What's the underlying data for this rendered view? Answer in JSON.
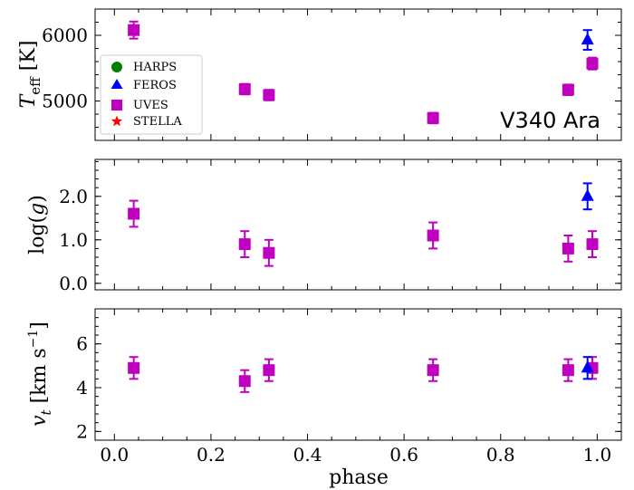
{
  "figure": {
    "annotation": "V340 Ara",
    "xlabel": "phase",
    "x_ticks": [
      "0.0",
      "0.2",
      "0.4",
      "0.6",
      "0.8",
      "1.0"
    ],
    "legend": [
      {
        "name": "HARPS",
        "marker": "circle",
        "color": "#008000"
      },
      {
        "name": "FEROS",
        "marker": "triangle",
        "color": "#0000ff"
      },
      {
        "name": "UVES",
        "marker": "square",
        "color": "#bf00bf"
      },
      {
        "name": "STELLA",
        "marker": "star",
        "color": "#ff0000"
      }
    ]
  },
  "chart_data": [
    {
      "type": "scatter",
      "title": "",
      "xlabel": "phase",
      "ylabel": "T_eff [K]",
      "xlim": [
        -0.04,
        1.05
      ],
      "ylim": [
        4400,
        6400
      ],
      "y_ticks": [
        5000,
        6000
      ],
      "y_tick_labels": [
        "5000",
        "6000"
      ],
      "series": [
        {
          "name": "UVES",
          "color": "#bf00bf",
          "marker": "square",
          "x": [
            0.04,
            0.27,
            0.32,
            0.66,
            0.94,
            0.99
          ],
          "y": [
            6080,
            5180,
            5090,
            4740,
            5170,
            5570
          ],
          "yerr": [
            130,
            80,
            80,
            80,
            80,
            90
          ]
        },
        {
          "name": "FEROS",
          "color": "#0000ff",
          "marker": "triangle",
          "x": [
            0.98
          ],
          "y": [
            5930
          ],
          "yerr": [
            150
          ]
        }
      ]
    },
    {
      "type": "scatter",
      "title": "",
      "xlabel": "phase",
      "ylabel": "log(g)",
      "xlim": [
        -0.04,
        1.05
      ],
      "ylim": [
        -0.15,
        2.85
      ],
      "y_ticks": [
        0.0,
        1.0,
        2.0
      ],
      "y_tick_labels": [
        "0.0",
        "1.0",
        "2.0"
      ],
      "series": [
        {
          "name": "UVES",
          "color": "#bf00bf",
          "marker": "square",
          "x": [
            0.04,
            0.27,
            0.32,
            0.66,
            0.94,
            0.99
          ],
          "y": [
            1.6,
            0.9,
            0.7,
            1.1,
            0.8,
            0.9
          ],
          "yerr": [
            0.3,
            0.3,
            0.3,
            0.3,
            0.3,
            0.3
          ]
        },
        {
          "name": "FEROS",
          "color": "#0000ff",
          "marker": "triangle",
          "x": [
            0.98
          ],
          "y": [
            2.0
          ],
          "yerr": [
            0.3
          ]
        }
      ]
    },
    {
      "type": "scatter",
      "title": "",
      "xlabel": "phase",
      "ylabel": "v_t [km s^-1]",
      "xlim": [
        -0.04,
        1.05
      ],
      "ylim": [
        1.6,
        7.6
      ],
      "y_ticks": [
        2,
        4,
        6
      ],
      "y_tick_labels": [
        "2",
        "4",
        "6"
      ],
      "series": [
        {
          "name": "UVES",
          "color": "#bf00bf",
          "marker": "square",
          "x": [
            0.04,
            0.27,
            0.32,
            0.66,
            0.94,
            0.99
          ],
          "y": [
            4.9,
            4.3,
            4.8,
            4.8,
            4.8,
            4.9
          ],
          "yerr": [
            0.5,
            0.5,
            0.5,
            0.5,
            0.5,
            0.5
          ]
        },
        {
          "name": "FEROS",
          "color": "#0000ff",
          "marker": "triangle",
          "x": [
            0.98
          ],
          "y": [
            4.9
          ],
          "yerr": [
            0.5
          ]
        }
      ]
    }
  ]
}
